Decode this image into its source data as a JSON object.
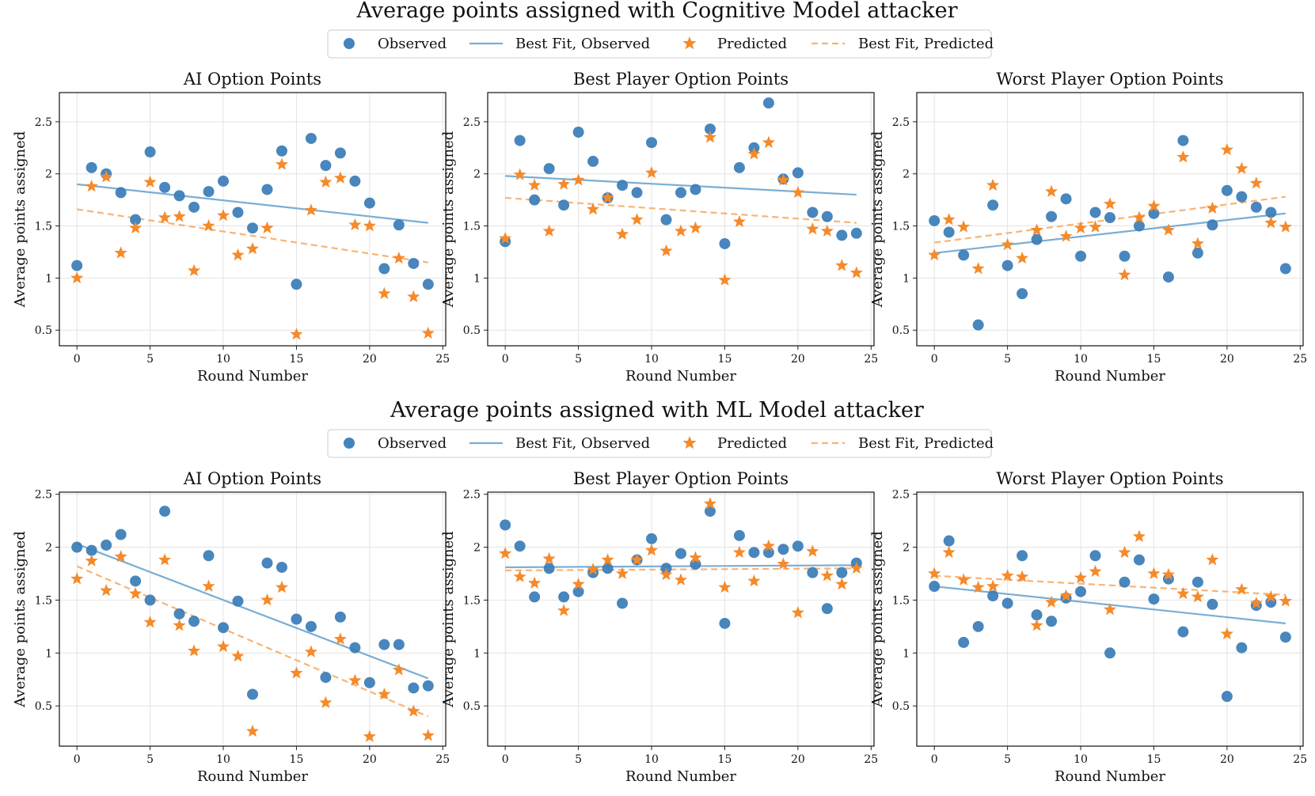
{
  "colors": {
    "observed": "#3A7DB8",
    "predicted": "#F58A2A",
    "fit_observed": "#7AAED4",
    "fit_predicted": "#F9B374"
  },
  "figure_rows": [
    {
      "suptitle": "Average points assigned with Cognitive Model attacker",
      "legend": {
        "observed": "Observed",
        "fit_observed": "Best Fit, Observed",
        "predicted": "Predicted",
        "fit_predicted": "Best Fit, Predicted"
      }
    },
    {
      "suptitle": "Average points assigned with ML Model attacker",
      "legend": {
        "observed": "Observed",
        "fit_observed": "Best Fit, Observed",
        "predicted": "Predicted",
        "fit_predicted": "Best Fit, Predicted"
      }
    }
  ],
  "chart_data": [
    {
      "type": "scatter",
      "title": "AI Option Points",
      "xlabel": "Round Number",
      "ylabel": "Average points assigned",
      "xlim": [
        -1.2,
        25.2
      ],
      "ylim": [
        0.35,
        2.78
      ],
      "xticks": [
        0,
        5,
        10,
        15,
        20,
        25
      ],
      "yticks": [
        0.5,
        1.0,
        1.5,
        2.0,
        2.5
      ],
      "grid": true,
      "x": [
        0,
        1,
        2,
        3,
        4,
        5,
        6,
        7,
        8,
        9,
        10,
        11,
        12,
        13,
        14,
        15,
        16,
        17,
        18,
        19,
        20,
        21,
        22,
        23,
        24
      ],
      "series": [
        {
          "name": "Observed",
          "marker": "circle",
          "values": [
            1.12,
            2.06,
            2.0,
            1.82,
            1.56,
            2.21,
            1.87,
            1.79,
            1.68,
            1.83,
            1.93,
            1.63,
            1.48,
            1.85,
            2.22,
            0.94,
            2.34,
            2.08,
            2.2,
            1.93,
            1.72,
            1.09,
            1.51,
            1.14,
            0.94
          ]
        },
        {
          "name": "Predicted",
          "marker": "star",
          "values": [
            1.0,
            1.88,
            1.97,
            1.24,
            1.48,
            1.92,
            1.58,
            1.59,
            1.07,
            1.5,
            1.6,
            1.22,
            1.28,
            1.48,
            2.09,
            0.46,
            1.65,
            1.92,
            1.96,
            1.51,
            1.5,
            0.85,
            1.19,
            0.82,
            0.47
          ]
        }
      ],
      "fits": [
        {
          "name": "Best Fit, Observed",
          "style": "solid",
          "x": [
            0,
            24
          ],
          "y": [
            1.9,
            1.53
          ]
        },
        {
          "name": "Best Fit, Predicted",
          "style": "dashed",
          "x": [
            0,
            24
          ],
          "y": [
            1.66,
            1.15
          ]
        }
      ]
    },
    {
      "type": "scatter",
      "title": "Best Player Option Points",
      "xlabel": "Round Number",
      "ylabel": "Average points assigned",
      "xlim": [
        -1.2,
        25.2
      ],
      "ylim": [
        0.35,
        2.78
      ],
      "xticks": [
        0,
        5,
        10,
        15,
        20,
        25
      ],
      "yticks": [
        0.5,
        1.0,
        1.5,
        2.0,
        2.5
      ],
      "grid": true,
      "x": [
        0,
        1,
        2,
        3,
        4,
        5,
        6,
        7,
        8,
        9,
        10,
        11,
        12,
        13,
        14,
        15,
        16,
        17,
        18,
        19,
        20,
        21,
        22,
        23,
        24
      ],
      "series": [
        {
          "name": "Observed",
          "marker": "circle",
          "values": [
            1.35,
            2.32,
            1.75,
            2.05,
            1.7,
            2.4,
            2.12,
            1.77,
            1.89,
            1.82,
            2.3,
            1.56,
            1.82,
            1.85,
            2.43,
            1.33,
            2.06,
            2.25,
            2.68,
            1.95,
            2.01,
            1.63,
            1.59,
            1.41,
            1.43
          ]
        },
        {
          "name": "Predicted",
          "marker": "star",
          "values": [
            1.38,
            1.99,
            1.89,
            1.45,
            1.9,
            1.94,
            1.66,
            1.77,
            1.42,
            1.56,
            2.01,
            1.26,
            1.45,
            1.48,
            2.35,
            0.98,
            1.54,
            2.19,
            2.3,
            1.94,
            1.82,
            1.47,
            1.45,
            1.12,
            1.05
          ]
        }
      ],
      "fits": [
        {
          "name": "Best Fit, Observed",
          "style": "solid",
          "x": [
            0,
            24
          ],
          "y": [
            1.98,
            1.8
          ]
        },
        {
          "name": "Best Fit, Predicted",
          "style": "dashed",
          "x": [
            0,
            24
          ],
          "y": [
            1.77,
            1.53
          ]
        }
      ]
    },
    {
      "type": "scatter",
      "title": "Worst Player Option Points",
      "xlabel": "Round Number",
      "ylabel": "Average points assigned",
      "xlim": [
        -1.2,
        25.2
      ],
      "ylim": [
        0.35,
        2.78
      ],
      "xticks": [
        0,
        5,
        10,
        15,
        20,
        25
      ],
      "yticks": [
        0.5,
        1.0,
        1.5,
        2.0,
        2.5
      ],
      "grid": true,
      "x": [
        0,
        1,
        2,
        3,
        4,
        5,
        6,
        7,
        8,
        9,
        10,
        11,
        12,
        13,
        14,
        15,
        16,
        17,
        18,
        19,
        20,
        21,
        22,
        23,
        24
      ],
      "series": [
        {
          "name": "Observed",
          "marker": "circle",
          "values": [
            1.55,
            1.44,
            1.22,
            0.55,
            1.7,
            1.12,
            0.85,
            1.37,
            1.59,
            1.76,
            1.21,
            1.63,
            1.58,
            1.21,
            1.5,
            1.62,
            1.01,
            2.32,
            1.24,
            1.51,
            1.84,
            1.78,
            1.68,
            1.63,
            1.09
          ]
        },
        {
          "name": "Predicted",
          "marker": "star",
          "values": [
            1.22,
            1.56,
            1.49,
            1.09,
            1.89,
            1.32,
            1.19,
            1.46,
            1.83,
            1.4,
            1.48,
            1.49,
            1.71,
            1.03,
            1.58,
            1.69,
            1.46,
            2.16,
            1.33,
            1.67,
            2.23,
            2.05,
            1.91,
            1.53,
            1.49
          ]
        }
      ],
      "fits": [
        {
          "name": "Best Fit, Observed",
          "style": "solid",
          "x": [
            0,
            24
          ],
          "y": [
            1.24,
            1.62
          ]
        },
        {
          "name": "Best Fit, Predicted",
          "style": "dashed",
          "x": [
            0,
            24
          ],
          "y": [
            1.34,
            1.78
          ]
        }
      ]
    },
    {
      "type": "scatter",
      "title": "AI Option Points",
      "xlabel": "Round Number",
      "ylabel": "Average points assigned",
      "xlim": [
        -1.2,
        25.2
      ],
      "ylim": [
        0.12,
        2.52
      ],
      "xticks": [
        0,
        5,
        10,
        15,
        20,
        25
      ],
      "yticks": [
        0.5,
        1.0,
        1.5,
        2.0,
        2.5
      ],
      "grid": true,
      "x": [
        0,
        1,
        2,
        3,
        4,
        5,
        6,
        7,
        8,
        9,
        10,
        11,
        12,
        13,
        14,
        15,
        16,
        17,
        18,
        19,
        20,
        21,
        22,
        23,
        24
      ],
      "series": [
        {
          "name": "Observed",
          "marker": "circle",
          "values": [
            2.0,
            1.97,
            2.02,
            2.12,
            1.68,
            1.5,
            2.34,
            1.37,
            1.3,
            1.92,
            1.24,
            1.49,
            0.61,
            1.85,
            1.81,
            1.32,
            1.25,
            0.77,
            1.34,
            1.05,
            0.72,
            1.08,
            1.08,
            0.67,
            0.69
          ]
        },
        {
          "name": "Predicted",
          "marker": "star",
          "values": [
            1.7,
            1.87,
            1.59,
            1.91,
            1.56,
            1.29,
            1.88,
            1.26,
            1.02,
            1.63,
            1.06,
            0.97,
            0.26,
            1.5,
            1.62,
            0.81,
            1.01,
            0.53,
            1.13,
            0.74,
            0.21,
            0.61,
            0.84,
            0.45,
            0.22
          ]
        }
      ],
      "fits": [
        {
          "name": "Best Fit, Observed",
          "style": "solid",
          "x": [
            0,
            24
          ],
          "y": [
            2.03,
            0.76
          ]
        },
        {
          "name": "Best Fit, Predicted",
          "style": "dashed",
          "x": [
            0,
            24
          ],
          "y": [
            1.82,
            0.4
          ]
        }
      ]
    },
    {
      "type": "scatter",
      "title": "Best Player Option Points",
      "xlabel": "Round Number",
      "ylabel": "Average points assigned",
      "xlim": [
        -1.2,
        25.2
      ],
      "ylim": [
        0.12,
        2.52
      ],
      "xticks": [
        0,
        5,
        10,
        15,
        20,
        25
      ],
      "yticks": [
        0.5,
        1.0,
        1.5,
        2.0,
        2.5
      ],
      "grid": true,
      "x": [
        0,
        1,
        2,
        3,
        4,
        5,
        6,
        7,
        8,
        9,
        10,
        11,
        12,
        13,
        14,
        15,
        16,
        17,
        18,
        19,
        20,
        21,
        22,
        23,
        24
      ],
      "series": [
        {
          "name": "Observed",
          "marker": "circle",
          "values": [
            2.21,
            2.01,
            1.53,
            1.8,
            1.53,
            1.58,
            1.76,
            1.8,
            1.47,
            1.88,
            2.08,
            1.8,
            1.94,
            1.84,
            2.34,
            1.28,
            2.11,
            1.95,
            1.95,
            1.98,
            2.01,
            1.76,
            1.42,
            1.76,
            1.85
          ]
        },
        {
          "name": "Predicted",
          "marker": "star",
          "values": [
            1.94,
            1.72,
            1.66,
            1.89,
            1.4,
            1.65,
            1.79,
            1.88,
            1.75,
            1.88,
            1.97,
            1.74,
            1.69,
            1.9,
            2.41,
            1.62,
            1.95,
            1.68,
            2.01,
            1.84,
            1.38,
            1.96,
            1.73,
            1.65,
            1.8
          ]
        }
      ],
      "fits": [
        {
          "name": "Best Fit, Observed",
          "style": "solid",
          "x": [
            0,
            24
          ],
          "y": [
            1.81,
            1.83
          ]
        },
        {
          "name": "Best Fit, Predicted",
          "style": "dashed",
          "x": [
            0,
            24
          ],
          "y": [
            1.78,
            1.8
          ]
        }
      ]
    },
    {
      "type": "scatter",
      "title": "Worst Player Option Points",
      "xlabel": "Round Number",
      "ylabel": "Average points assigned",
      "xlim": [
        -1.2,
        25.2
      ],
      "ylim": [
        0.12,
        2.52
      ],
      "xticks": [
        0,
        5,
        10,
        15,
        20,
        25
      ],
      "yticks": [
        0.5,
        1.0,
        1.5,
        2.0,
        2.5
      ],
      "grid": true,
      "x": [
        0,
        1,
        2,
        3,
        4,
        5,
        6,
        7,
        8,
        9,
        10,
        11,
        12,
        13,
        14,
        15,
        16,
        17,
        18,
        19,
        20,
        21,
        22,
        23,
        24
      ],
      "series": [
        {
          "name": "Observed",
          "marker": "circle",
          "values": [
            1.63,
            2.06,
            1.1,
            1.25,
            1.54,
            1.47,
            1.92,
            1.36,
            1.3,
            1.52,
            1.58,
            1.92,
            1.0,
            1.67,
            1.88,
            1.51,
            1.7,
            1.2,
            1.67,
            1.46,
            0.59,
            1.05,
            1.45,
            1.48,
            1.15
          ]
        },
        {
          "name": "Predicted",
          "marker": "star",
          "values": [
            1.75,
            1.95,
            1.69,
            1.62,
            1.63,
            1.73,
            1.72,
            1.26,
            1.48,
            1.54,
            1.71,
            1.77,
            1.41,
            1.95,
            2.1,
            1.75,
            1.74,
            1.56,
            1.53,
            1.88,
            1.18,
            1.6,
            1.47,
            1.53,
            1.49
          ]
        }
      ],
      "fits": [
        {
          "name": "Best Fit, Observed",
          "style": "solid",
          "x": [
            0,
            24
          ],
          "y": [
            1.63,
            1.28
          ]
        },
        {
          "name": "Best Fit, Predicted",
          "style": "dashed",
          "x": [
            0,
            24
          ],
          "y": [
            1.73,
            1.55
          ]
        }
      ]
    }
  ]
}
